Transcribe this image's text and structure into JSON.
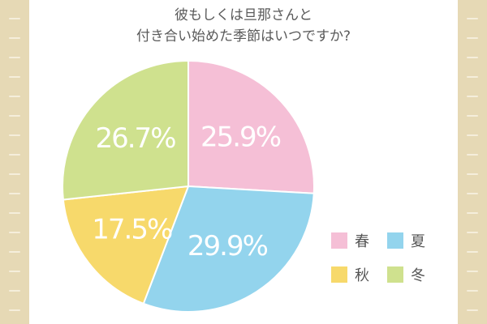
{
  "title": {
    "line1": "彼もしくは旦那さんと",
    "line2": "付き合い始めた季節はいつですか?"
  },
  "chart_data": {
    "type": "pie",
    "title": "彼もしくは旦那さんと付き合い始めた季節はいつですか?",
    "slices": [
      {
        "label": "春",
        "value": 25.9,
        "display": "25.9%",
        "color": "#f5bfd6"
      },
      {
        "label": "夏",
        "value": 29.9,
        "display": "29.9%",
        "color": "#93d4ed"
      },
      {
        "label": "秋",
        "value": 17.5,
        "display": "17.5%",
        "color": "#f7d96b"
      },
      {
        "label": "冬",
        "value": 26.7,
        "display": "26.7%",
        "color": "#cfe18e"
      }
    ],
    "start_angle": "12 o'clock",
    "direction": "clockwise",
    "legend_position": "right"
  },
  "legend": {
    "items": [
      {
        "label": "春",
        "color": "#f5bfd6"
      },
      {
        "label": "夏",
        "color": "#93d4ed"
      },
      {
        "label": "秋",
        "color": "#f7d96b"
      },
      {
        "label": "冬",
        "color": "#cfe18e"
      }
    ]
  },
  "theme": {
    "side_stripe": "#e6d9b5",
    "background": "#ffffff",
    "title_color": "#5a5a5a"
  }
}
